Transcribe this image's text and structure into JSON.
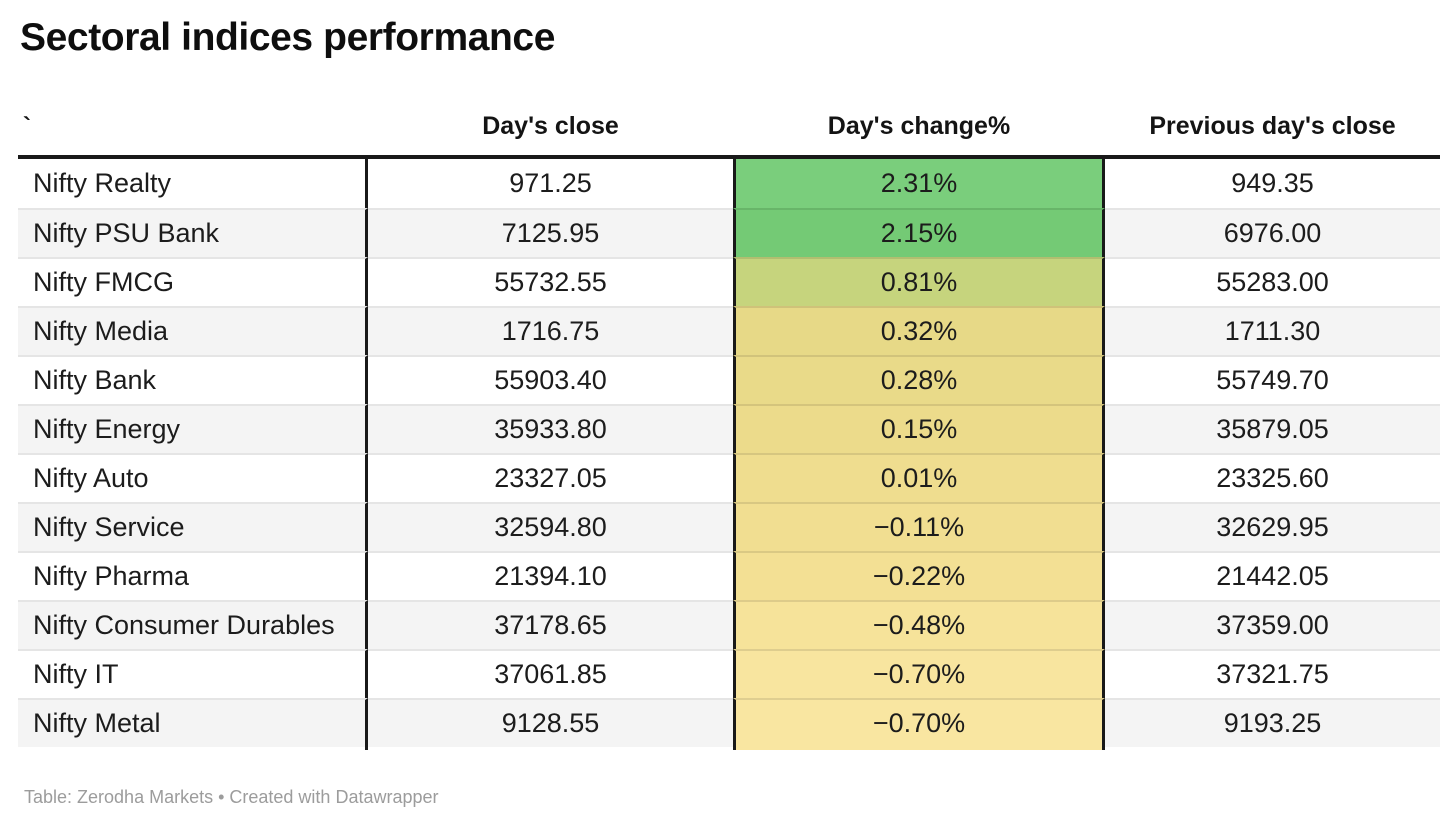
{
  "title": "Sectoral indices performance",
  "footer": "Table: Zerodha Markets • Created with Datawrapper",
  "colors": {
    "header_border": "#191919",
    "column_divider": "#191919",
    "row_alt_background": "#f4f4f4",
    "row_separator": "#e5e5e5",
    "text": "#1c1c1c",
    "footer_text": "#9c9c9c",
    "positive_high": "#7ace7c",
    "neutral_mid": "#e7d987",
    "negative_low": "#f9e6a1"
  },
  "table": {
    "columns": [
      {
        "label": "`"
      },
      {
        "label": "Day's close"
      },
      {
        "label": "Day's change%"
      },
      {
        "label": "Previous day's close"
      }
    ],
    "rows": [
      {
        "name": "Nifty Realty",
        "close": "971.25",
        "change": "2.31%",
        "prev": "949.35",
        "change_color": "#7ace7c"
      },
      {
        "name": "Nifty PSU Bank",
        "close": "7125.95",
        "change": "2.15%",
        "prev": "6976.00",
        "change_color": "#74ca75"
      },
      {
        "name": "Nifty FMCG",
        "close": "55732.55",
        "change": "0.81%",
        "prev": "55283.00",
        "change_color": "#c6d47d"
      },
      {
        "name": "Nifty Media",
        "close": "1716.75",
        "change": "0.32%",
        "prev": "1711.30",
        "change_color": "#e7d987"
      },
      {
        "name": "Nifty Bank",
        "close": "55903.40",
        "change": "0.28%",
        "prev": "55749.70",
        "change_color": "#e9da89"
      },
      {
        "name": "Nifty Energy",
        "close": "35933.80",
        "change": "0.15%",
        "prev": "35879.05",
        "change_color": "#ecdb8b"
      },
      {
        "name": "Nifty Auto",
        "close": "23327.05",
        "change": "0.01%",
        "prev": "23325.60",
        "change_color": "#efdd8f"
      },
      {
        "name": "Nifty Service",
        "close": "32594.80",
        "change": "−0.11%",
        "prev": "32629.95",
        "change_color": "#f1de91"
      },
      {
        "name": "Nifty Pharma",
        "close": "21394.10",
        "change": "−0.22%",
        "prev": "21442.05",
        "change_color": "#f3e094"
      },
      {
        "name": "Nifty Consumer Durables",
        "close": "37178.65",
        "change": "−0.48%",
        "prev": "37359.00",
        "change_color": "#f6e39a"
      },
      {
        "name": "Nifty IT",
        "close": "37061.85",
        "change": "−0.70%",
        "prev": "37321.75",
        "change_color": "#f8e59f"
      },
      {
        "name": "Nifty Metal",
        "close": "9128.55",
        "change": "−0.70%",
        "prev": "9193.25",
        "change_color": "#f9e6a1"
      }
    ]
  },
  "chart_data": {
    "type": "table",
    "title": "Sectoral indices performance",
    "columns": [
      "",
      "Day's close",
      "Day's change%",
      "Previous day's close"
    ],
    "heatmap_column": "Day's change%",
    "rows": [
      [
        "Nifty Realty",
        971.25,
        2.31,
        949.35
      ],
      [
        "Nifty PSU Bank",
        7125.95,
        2.15,
        6976.0
      ],
      [
        "Nifty FMCG",
        55732.55,
        0.81,
        55283.0
      ],
      [
        "Nifty Media",
        1716.75,
        0.32,
        1711.3
      ],
      [
        "Nifty Bank",
        55903.4,
        0.28,
        55749.7
      ],
      [
        "Nifty Energy",
        35933.8,
        0.15,
        35879.05
      ],
      [
        "Nifty Auto",
        23327.05,
        0.01,
        23325.6
      ],
      [
        "Nifty Service",
        32594.8,
        -0.11,
        32629.95
      ],
      [
        "Nifty Pharma",
        21394.1,
        -0.22,
        21442.05
      ],
      [
        "Nifty Consumer Durables",
        37178.65,
        -0.48,
        37359.0
      ],
      [
        "Nifty IT",
        37061.85,
        -0.7,
        37321.75
      ],
      [
        "Nifty Metal",
        9128.55,
        -0.7,
        9193.25
      ]
    ],
    "footer": "Table: Zerodha Markets • Created with Datawrapper"
  }
}
